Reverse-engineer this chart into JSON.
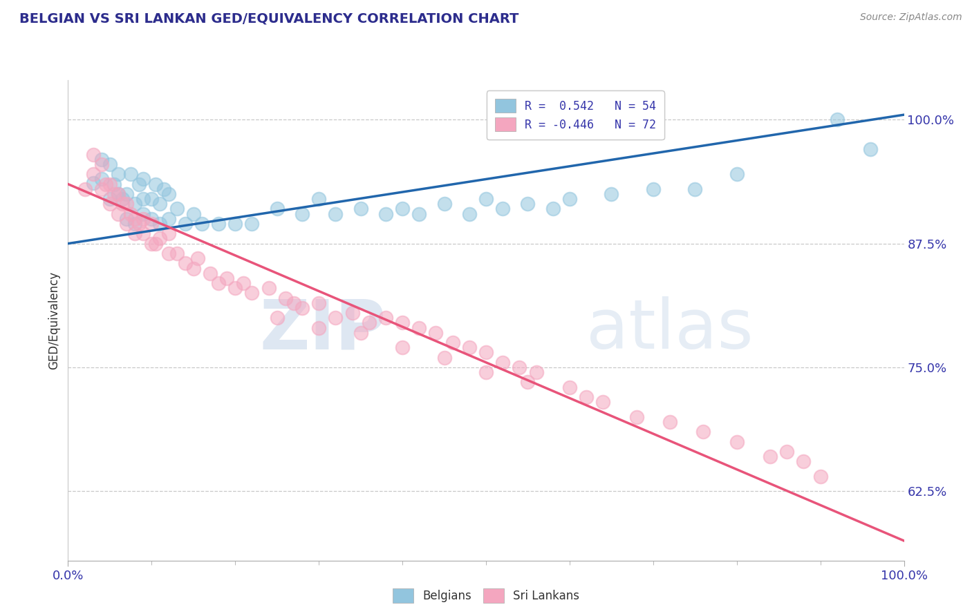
{
  "title": "BELGIAN VS SRI LANKAN GED/EQUIVALENCY CORRELATION CHART",
  "source": "Source: ZipAtlas.com",
  "ylabel": "GED/Equivalency",
  "xlim": [
    0.0,
    1.0
  ],
  "ylim": [
    0.555,
    1.04
  ],
  "yticks": [
    0.625,
    0.75,
    0.875,
    1.0
  ],
  "ytick_labels": [
    "62.5%",
    "75.0%",
    "87.5%",
    "100.0%"
  ],
  "xtick_labels": [
    "0.0%",
    "100.0%"
  ],
  "legend_r_blue": "0.542",
  "legend_n_blue": "54",
  "legend_r_pink": "-0.446",
  "legend_n_pink": "72",
  "blue_color": "#92c5de",
  "pink_color": "#f4a6bf",
  "blue_line_color": "#2166ac",
  "pink_line_color": "#e8547a",
  "legend_text_color": "#3535aa",
  "title_color": "#2c2c8c",
  "watermark_zip": "ZIP",
  "watermark_atlas": "atlas",
  "background_color": "#ffffff",
  "blue_scatter_x": [
    0.03,
    0.04,
    0.04,
    0.05,
    0.05,
    0.055,
    0.06,
    0.06,
    0.065,
    0.07,
    0.07,
    0.075,
    0.08,
    0.08,
    0.085,
    0.09,
    0.09,
    0.09,
    0.1,
    0.1,
    0.105,
    0.11,
    0.11,
    0.115,
    0.12,
    0.12,
    0.13,
    0.14,
    0.15,
    0.16,
    0.18,
    0.2,
    0.22,
    0.25,
    0.28,
    0.3,
    0.32,
    0.35,
    0.38,
    0.4,
    0.42,
    0.45,
    0.48,
    0.5,
    0.52,
    0.55,
    0.58,
    0.6,
    0.65,
    0.7,
    0.75,
    0.8,
    0.92,
    0.96
  ],
  "blue_scatter_y": [
    0.936,
    0.94,
    0.96,
    0.92,
    0.955,
    0.935,
    0.925,
    0.945,
    0.92,
    0.9,
    0.925,
    0.945,
    0.895,
    0.915,
    0.935,
    0.905,
    0.92,
    0.94,
    0.9,
    0.92,
    0.935,
    0.895,
    0.915,
    0.93,
    0.9,
    0.925,
    0.91,
    0.895,
    0.905,
    0.895,
    0.895,
    0.895,
    0.895,
    0.91,
    0.905,
    0.92,
    0.905,
    0.91,
    0.905,
    0.91,
    0.905,
    0.915,
    0.905,
    0.92,
    0.91,
    0.915,
    0.91,
    0.92,
    0.925,
    0.93,
    0.93,
    0.945,
    1.0,
    0.97
  ],
  "pink_scatter_x": [
    0.02,
    0.03,
    0.03,
    0.04,
    0.04,
    0.045,
    0.05,
    0.05,
    0.055,
    0.06,
    0.06,
    0.065,
    0.07,
    0.07,
    0.075,
    0.08,
    0.08,
    0.085,
    0.09,
    0.09,
    0.1,
    0.1,
    0.105,
    0.11,
    0.12,
    0.12,
    0.13,
    0.14,
    0.15,
    0.155,
    0.17,
    0.18,
    0.19,
    0.2,
    0.21,
    0.22,
    0.24,
    0.26,
    0.27,
    0.28,
    0.3,
    0.32,
    0.34,
    0.36,
    0.38,
    0.4,
    0.42,
    0.44,
    0.46,
    0.48,
    0.5,
    0.52,
    0.54,
    0.56,
    0.6,
    0.62,
    0.64,
    0.68,
    0.72,
    0.76,
    0.8,
    0.84,
    0.88,
    0.9,
    0.25,
    0.3,
    0.35,
    0.4,
    0.45,
    0.5,
    0.55,
    0.86
  ],
  "pink_scatter_y": [
    0.93,
    0.945,
    0.965,
    0.93,
    0.955,
    0.935,
    0.915,
    0.935,
    0.925,
    0.905,
    0.925,
    0.915,
    0.895,
    0.915,
    0.905,
    0.885,
    0.9,
    0.895,
    0.885,
    0.9,
    0.875,
    0.895,
    0.875,
    0.88,
    0.865,
    0.885,
    0.865,
    0.855,
    0.85,
    0.86,
    0.845,
    0.835,
    0.84,
    0.83,
    0.835,
    0.825,
    0.83,
    0.82,
    0.815,
    0.81,
    0.815,
    0.8,
    0.805,
    0.795,
    0.8,
    0.795,
    0.79,
    0.785,
    0.775,
    0.77,
    0.765,
    0.755,
    0.75,
    0.745,
    0.73,
    0.72,
    0.715,
    0.7,
    0.695,
    0.685,
    0.675,
    0.66,
    0.655,
    0.64,
    0.8,
    0.79,
    0.785,
    0.77,
    0.76,
    0.745,
    0.735,
    0.665
  ],
  "blue_trend_x": [
    0.0,
    1.0
  ],
  "blue_trend_y": [
    0.875,
    1.005
  ],
  "pink_trend_x": [
    0.0,
    1.0
  ],
  "pink_trend_y": [
    0.935,
    0.575
  ]
}
